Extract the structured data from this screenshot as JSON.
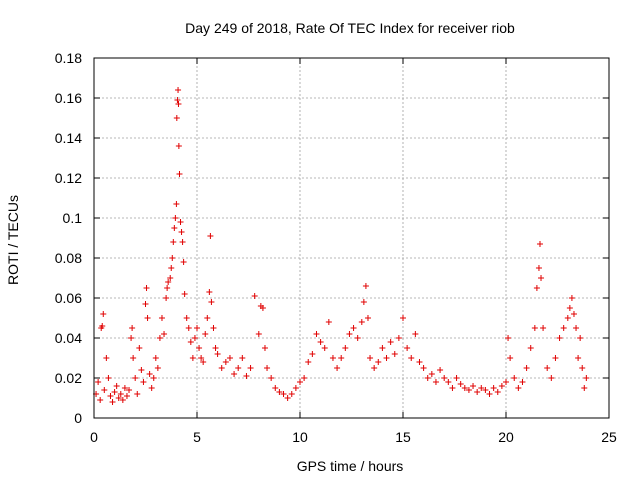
{
  "chart_data": {
    "type": "scatter",
    "title": "Day 249 of 2018, Rate Of TEC Index for receiver riob",
    "xlabel": "GPS time / hours",
    "ylabel": "ROTI / TECUs",
    "xlim": [
      0,
      25
    ],
    "ylim": [
      0,
      0.18
    ],
    "xticks": [
      0,
      5,
      10,
      15,
      20,
      25
    ],
    "xtick_labels": [
      "0",
      "5",
      "10",
      "15",
      "20",
      "25"
    ],
    "yticks": [
      0,
      0.02,
      0.04,
      0.06,
      0.08,
      0.1,
      0.12,
      0.14,
      0.16,
      0.18
    ],
    "ytick_labels": [
      "0",
      "0.02",
      "0.04",
      "0.06",
      "0.08",
      "0.1",
      "0.12",
      "0.14",
      "0.16",
      "0.18"
    ],
    "grid": true,
    "marker": "+",
    "color": "#e00000",
    "series": [
      {
        "name": "ROTI",
        "points": [
          [
            0.1,
            0.012
          ],
          [
            0.2,
            0.018
          ],
          [
            0.3,
            0.009
          ],
          [
            0.35,
            0.045
          ],
          [
            0.4,
            0.046
          ],
          [
            0.45,
            0.052
          ],
          [
            0.5,
            0.014
          ],
          [
            0.6,
            0.03
          ],
          [
            0.7,
            0.02
          ],
          [
            0.8,
            0.011
          ],
          [
            0.9,
            0.008
          ],
          [
            1.0,
            0.013
          ],
          [
            1.1,
            0.016
          ],
          [
            1.2,
            0.01
          ],
          [
            1.3,
            0.012
          ],
          [
            1.4,
            0.009
          ],
          [
            1.5,
            0.015
          ],
          [
            1.6,
            0.011
          ],
          [
            1.7,
            0.014
          ],
          [
            1.8,
            0.04
          ],
          [
            1.85,
            0.045
          ],
          [
            1.9,
            0.03
          ],
          [
            2.0,
            0.02
          ],
          [
            2.1,
            0.012
          ],
          [
            2.2,
            0.035
          ],
          [
            2.3,
            0.024
          ],
          [
            2.4,
            0.018
          ],
          [
            2.5,
            0.057
          ],
          [
            2.55,
            0.065
          ],
          [
            2.6,
            0.05
          ],
          [
            2.7,
            0.022
          ],
          [
            2.8,
            0.015
          ],
          [
            2.9,
            0.02
          ],
          [
            3.0,
            0.03
          ],
          [
            3.1,
            0.025
          ],
          [
            3.2,
            0.04
          ],
          [
            3.3,
            0.05
          ],
          [
            3.4,
            0.042
          ],
          [
            3.5,
            0.06
          ],
          [
            3.55,
            0.065
          ],
          [
            3.6,
            0.068
          ],
          [
            3.7,
            0.07
          ],
          [
            3.75,
            0.075
          ],
          [
            3.8,
            0.08
          ],
          [
            3.85,
            0.088
          ],
          [
            3.9,
            0.095
          ],
          [
            3.95,
            0.1
          ],
          [
            4.0,
            0.107
          ],
          [
            4.02,
            0.15
          ],
          [
            4.05,
            0.159
          ],
          [
            4.08,
            0.164
          ],
          [
            4.1,
            0.157
          ],
          [
            4.12,
            0.136
          ],
          [
            4.15,
            0.122
          ],
          [
            4.2,
            0.098
          ],
          [
            4.25,
            0.093
          ],
          [
            4.3,
            0.088
          ],
          [
            4.35,
            0.078
          ],
          [
            4.4,
            0.062
          ],
          [
            4.5,
            0.05
          ],
          [
            4.6,
            0.045
          ],
          [
            4.7,
            0.038
          ],
          [
            4.8,
            0.03
          ],
          [
            4.9,
            0.04
          ],
          [
            5.0,
            0.045
          ],
          [
            5.1,
            0.035
          ],
          [
            5.2,
            0.03
          ],
          [
            5.3,
            0.028
          ],
          [
            5.4,
            0.042
          ],
          [
            5.5,
            0.05
          ],
          [
            5.6,
            0.063
          ],
          [
            5.65,
            0.091
          ],
          [
            5.7,
            0.058
          ],
          [
            5.8,
            0.045
          ],
          [
            5.9,
            0.035
          ],
          [
            6.0,
            0.032
          ],
          [
            6.2,
            0.025
          ],
          [
            6.4,
            0.028
          ],
          [
            6.6,
            0.03
          ],
          [
            6.8,
            0.022
          ],
          [
            7.0,
            0.025
          ],
          [
            7.2,
            0.03
          ],
          [
            7.4,
            0.021
          ],
          [
            7.6,
            0.025
          ],
          [
            7.8,
            0.061
          ],
          [
            8.0,
            0.042
          ],
          [
            8.1,
            0.056
          ],
          [
            8.2,
            0.055
          ],
          [
            8.3,
            0.035
          ],
          [
            8.4,
            0.025
          ],
          [
            8.6,
            0.02
          ],
          [
            8.8,
            0.015
          ],
          [
            9.0,
            0.013
          ],
          [
            9.2,
            0.012
          ],
          [
            9.4,
            0.01
          ],
          [
            9.6,
            0.012
          ],
          [
            9.8,
            0.015
          ],
          [
            10.0,
            0.018
          ],
          [
            10.2,
            0.02
          ],
          [
            10.4,
            0.028
          ],
          [
            10.6,
            0.032
          ],
          [
            10.8,
            0.042
          ],
          [
            11.0,
            0.038
          ],
          [
            11.2,
            0.035
          ],
          [
            11.4,
            0.048
          ],
          [
            11.6,
            0.03
          ],
          [
            11.8,
            0.025
          ],
          [
            12.0,
            0.03
          ],
          [
            12.2,
            0.035
          ],
          [
            12.4,
            0.042
          ],
          [
            12.6,
            0.045
          ],
          [
            12.8,
            0.04
          ],
          [
            13.0,
            0.048
          ],
          [
            13.1,
            0.058
          ],
          [
            13.2,
            0.066
          ],
          [
            13.3,
            0.05
          ],
          [
            13.4,
            0.03
          ],
          [
            13.6,
            0.025
          ],
          [
            13.8,
            0.028
          ],
          [
            14.0,
            0.035
          ],
          [
            14.2,
            0.03
          ],
          [
            14.4,
            0.038
          ],
          [
            14.6,
            0.032
          ],
          [
            14.8,
            0.04
          ],
          [
            15.0,
            0.05
          ],
          [
            15.2,
            0.035
          ],
          [
            15.4,
            0.03
          ],
          [
            15.6,
            0.042
          ],
          [
            15.8,
            0.028
          ],
          [
            16.0,
            0.025
          ],
          [
            16.2,
            0.02
          ],
          [
            16.4,
            0.022
          ],
          [
            16.6,
            0.018
          ],
          [
            16.8,
            0.024
          ],
          [
            17.0,
            0.02
          ],
          [
            17.2,
            0.018
          ],
          [
            17.4,
            0.015
          ],
          [
            17.6,
            0.02
          ],
          [
            17.8,
            0.017
          ],
          [
            18.0,
            0.015
          ],
          [
            18.2,
            0.014
          ],
          [
            18.4,
            0.016
          ],
          [
            18.6,
            0.013
          ],
          [
            18.8,
            0.015
          ],
          [
            19.0,
            0.014
          ],
          [
            19.2,
            0.012
          ],
          [
            19.4,
            0.015
          ],
          [
            19.6,
            0.013
          ],
          [
            19.8,
            0.016
          ],
          [
            20.0,
            0.018
          ],
          [
            20.1,
            0.04
          ],
          [
            20.2,
            0.03
          ],
          [
            20.4,
            0.02
          ],
          [
            20.6,
            0.015
          ],
          [
            20.8,
            0.018
          ],
          [
            21.0,
            0.025
          ],
          [
            21.2,
            0.035
          ],
          [
            21.4,
            0.045
          ],
          [
            21.5,
            0.065
          ],
          [
            21.6,
            0.075
          ],
          [
            21.65,
            0.087
          ],
          [
            21.7,
            0.07
          ],
          [
            21.8,
            0.045
          ],
          [
            22.0,
            0.025
          ],
          [
            22.2,
            0.02
          ],
          [
            22.4,
            0.03
          ],
          [
            22.6,
            0.04
          ],
          [
            22.8,
            0.045
          ],
          [
            23.0,
            0.05
          ],
          [
            23.1,
            0.055
          ],
          [
            23.2,
            0.06
          ],
          [
            23.3,
            0.052
          ],
          [
            23.4,
            0.045
          ],
          [
            23.5,
            0.03
          ],
          [
            23.6,
            0.04
          ],
          [
            23.7,
            0.025
          ],
          [
            23.8,
            0.015
          ],
          [
            23.9,
            0.02
          ]
        ]
      }
    ]
  }
}
